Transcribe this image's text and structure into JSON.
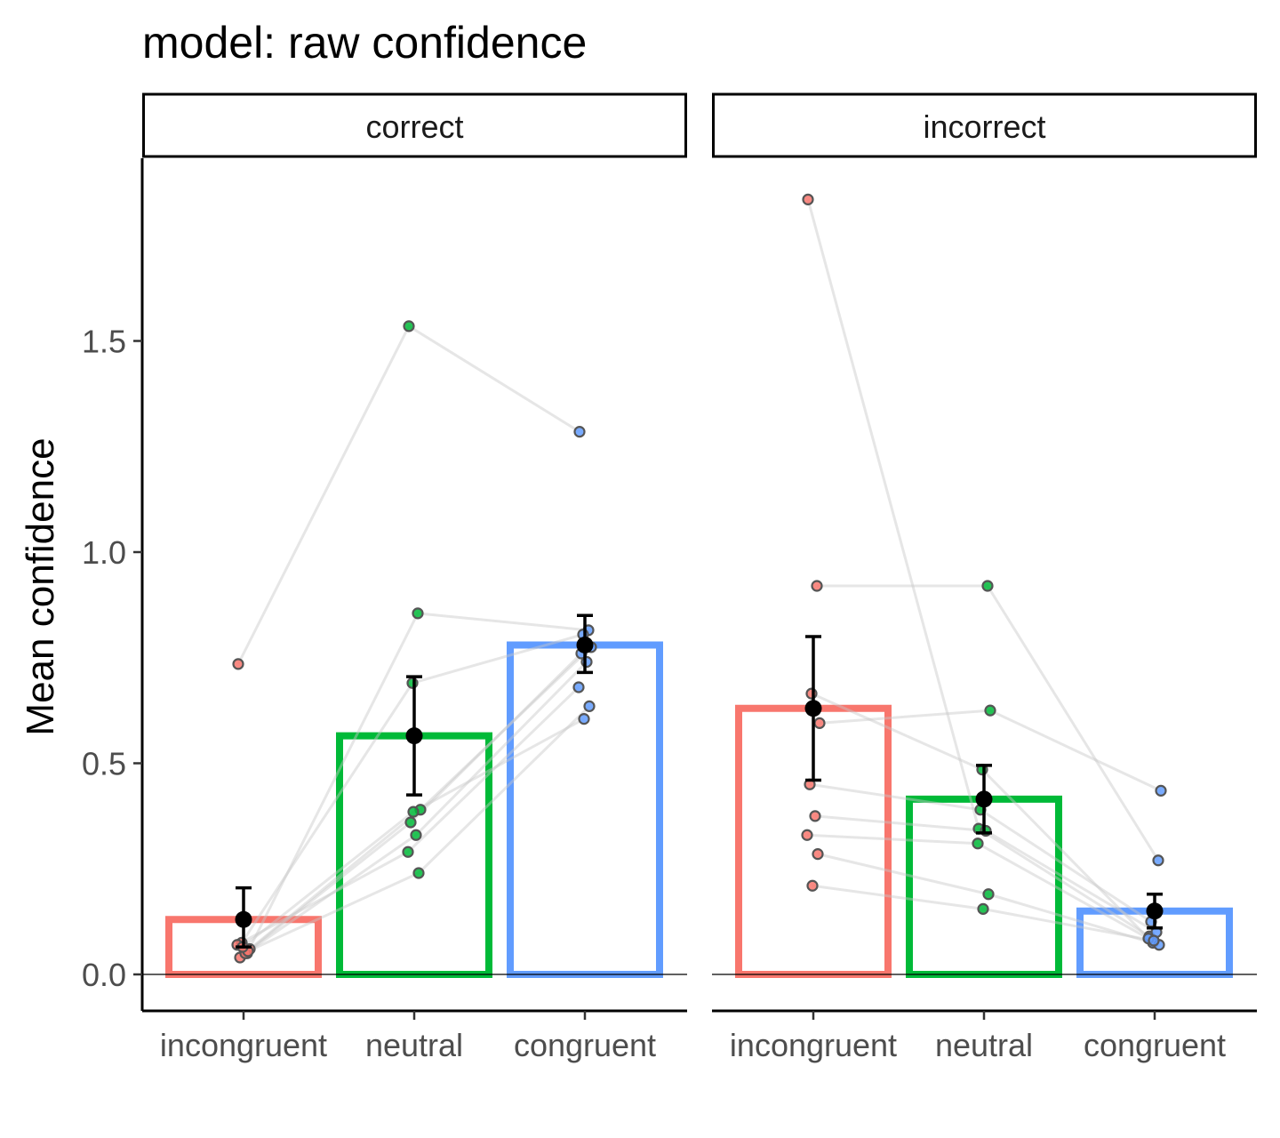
{
  "chart_data": {
    "type": "bar",
    "title": "model: raw confidence",
    "ylabel": "Mean confidence",
    "xlabel": "",
    "ylim": [
      -0.09,
      1.93
    ],
    "yticks": [
      0.0,
      0.5,
      1.0,
      1.5
    ],
    "ytick_labels": [
      "0.0",
      "0.5",
      "1.0",
      "1.5"
    ],
    "categories": [
      "incongruent",
      "neutral",
      "congruent"
    ],
    "colors": {
      "incongruent": "#F8766D",
      "neutral": "#00BA38",
      "congruent": "#619CFF"
    },
    "grid": false,
    "legend": "none",
    "facets": [
      {
        "label": "correct",
        "means": [
          0.13,
          0.565,
          0.78
        ],
        "errors": [
          [
            0.065,
            0.205
          ],
          [
            0.425,
            0.705
          ],
          [
            0.715,
            0.85
          ]
        ],
        "points": [
          [
            0.735,
            0.05,
            0.075,
            0.06,
            0.04,
            0.05,
            0.07,
            0.055,
            0.065
          ],
          [
            1.535,
            0.855,
            0.69,
            0.39,
            0.36,
            0.33,
            0.29,
            0.24,
            0.385
          ],
          [
            1.285,
            0.815,
            0.805,
            0.775,
            0.76,
            0.74,
            0.68,
            0.635,
            0.605
          ]
        ]
      },
      {
        "label": "incorrect",
        "means": [
          0.63,
          0.415,
          0.15
        ],
        "errors": [
          [
            0.46,
            0.8
          ],
          [
            0.335,
            0.495
          ],
          [
            0.11,
            0.19
          ]
        ],
        "points": [
          [
            1.835,
            0.92,
            0.665,
            0.595,
            0.45,
            0.375,
            0.33,
            0.285,
            0.21
          ],
          [
            0.345,
            0.92,
            0.485,
            0.625,
            0.39,
            0.34,
            0.31,
            0.19,
            0.155
          ],
          [
            0.09,
            0.27,
            0.075,
            0.435,
            0.125,
            0.1,
            0.085,
            0.07,
            0.08
          ]
        ]
      }
    ]
  }
}
